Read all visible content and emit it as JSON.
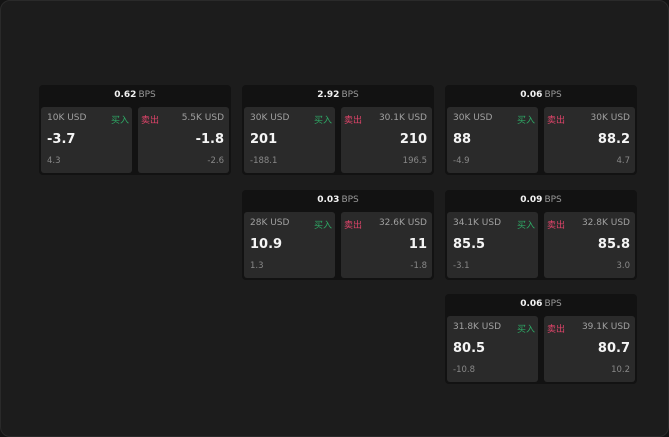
{
  "bps_unit": "BPS",
  "buy_label": "买入",
  "sell_label": "卖出",
  "cards": [
    {
      "bps": "0.62",
      "buy": {
        "qty": "10K USD",
        "price": "-3.7",
        "change": "4.3"
      },
      "sell": {
        "qty": "5.5K USD",
        "price": "-1.8",
        "change": "-2.6"
      }
    },
    {
      "bps": "2.92",
      "buy": {
        "qty": "30K USD",
        "price": "201",
        "change": "-188.1"
      },
      "sell": {
        "qty": "30.1K USD",
        "price": "210",
        "change": "196.5"
      }
    },
    {
      "bps": "0.06",
      "buy": {
        "qty": "30K USD",
        "price": "88",
        "change": "-4.9"
      },
      "sell": {
        "qty": "30K USD",
        "price": "88.2",
        "change": "4.7"
      }
    },
    {
      "bps": "0.03",
      "buy": {
        "qty": "28K USD",
        "price": "10.9",
        "change": "1.3"
      },
      "sell": {
        "qty": "32.6K USD",
        "price": "11",
        "change": "-1.8"
      }
    },
    {
      "bps": "0.09",
      "buy": {
        "qty": "34.1K USD",
        "price": "85.5",
        "change": "-3.1"
      },
      "sell": {
        "qty": "32.8K USD",
        "price": "85.8",
        "change": "3.0"
      }
    },
    {
      "bps": "0.06",
      "buy": {
        "qty": "31.8K USD",
        "price": "80.5",
        "change": "-10.8"
      },
      "sell": {
        "qty": "39.1K USD",
        "price": "80.7",
        "change": "10.2"
      }
    }
  ]
}
